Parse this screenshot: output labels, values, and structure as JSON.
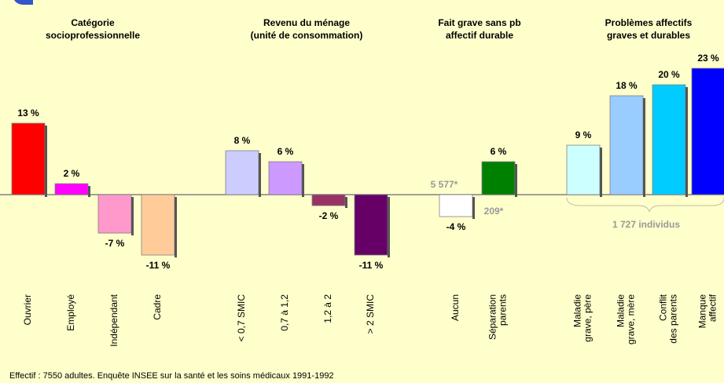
{
  "chart_data": {
    "type": "bar",
    "group_titles": [
      [
        "Catégorie",
        "socioprofessionnelle"
      ],
      [
        "Revenu du ménage",
        "(unité de consommation)"
      ],
      [
        "Fait grave sans pb",
        "affectif durable"
      ],
      [
        "Problèmes affectifs",
        "graves et durables"
      ]
    ],
    "categories": [
      [
        "Ouvrier"
      ],
      [
        "Employé"
      ],
      [
        "Indépendant"
      ],
      [
        "Cadre"
      ],
      [
        "< 0,7 SMIC"
      ],
      [
        "0,7 à 1,2"
      ],
      [
        "1,2 à 2"
      ],
      [
        "> 2 SMIC"
      ],
      [
        "Aucun"
      ],
      [
        "Séparation",
        "parents"
      ],
      [
        "Maladie",
        "grave, père"
      ],
      [
        "Maladie",
        "grave, mère"
      ],
      [
        "Conflit",
        "des parents"
      ],
      [
        "Manque",
        "affectif"
      ]
    ],
    "values": [
      13,
      2,
      -7,
      -11,
      8,
      6,
      -2,
      -11,
      -4,
      6,
      9,
      18,
      20,
      23
    ],
    "value_labels": [
      "13 %",
      "2 %",
      "-7 %",
      "-11 %",
      "8 %",
      "6 %",
      "-2 %",
      "-11 %",
      "-4 %",
      "6 %",
      "9 %",
      "18 %",
      "20 %",
      "23 %"
    ],
    "colors": [
      "#ff0000",
      "#ff00ff",
      "#ff99cc",
      "#ffcc99",
      "#ccccff",
      "#cc99ff",
      "#993366",
      "#660066",
      "#ffffff",
      "#008000",
      "#ccffff",
      "#99ccff",
      "#00ccff",
      "#0000ff"
    ],
    "annotations": [
      "5 577*",
      "209*",
      "1 727 individus"
    ],
    "footnote": "Effectif : 7550 adultes. Enquête INSEE sur la santé et les soins médicaux 1991-1992"
  }
}
